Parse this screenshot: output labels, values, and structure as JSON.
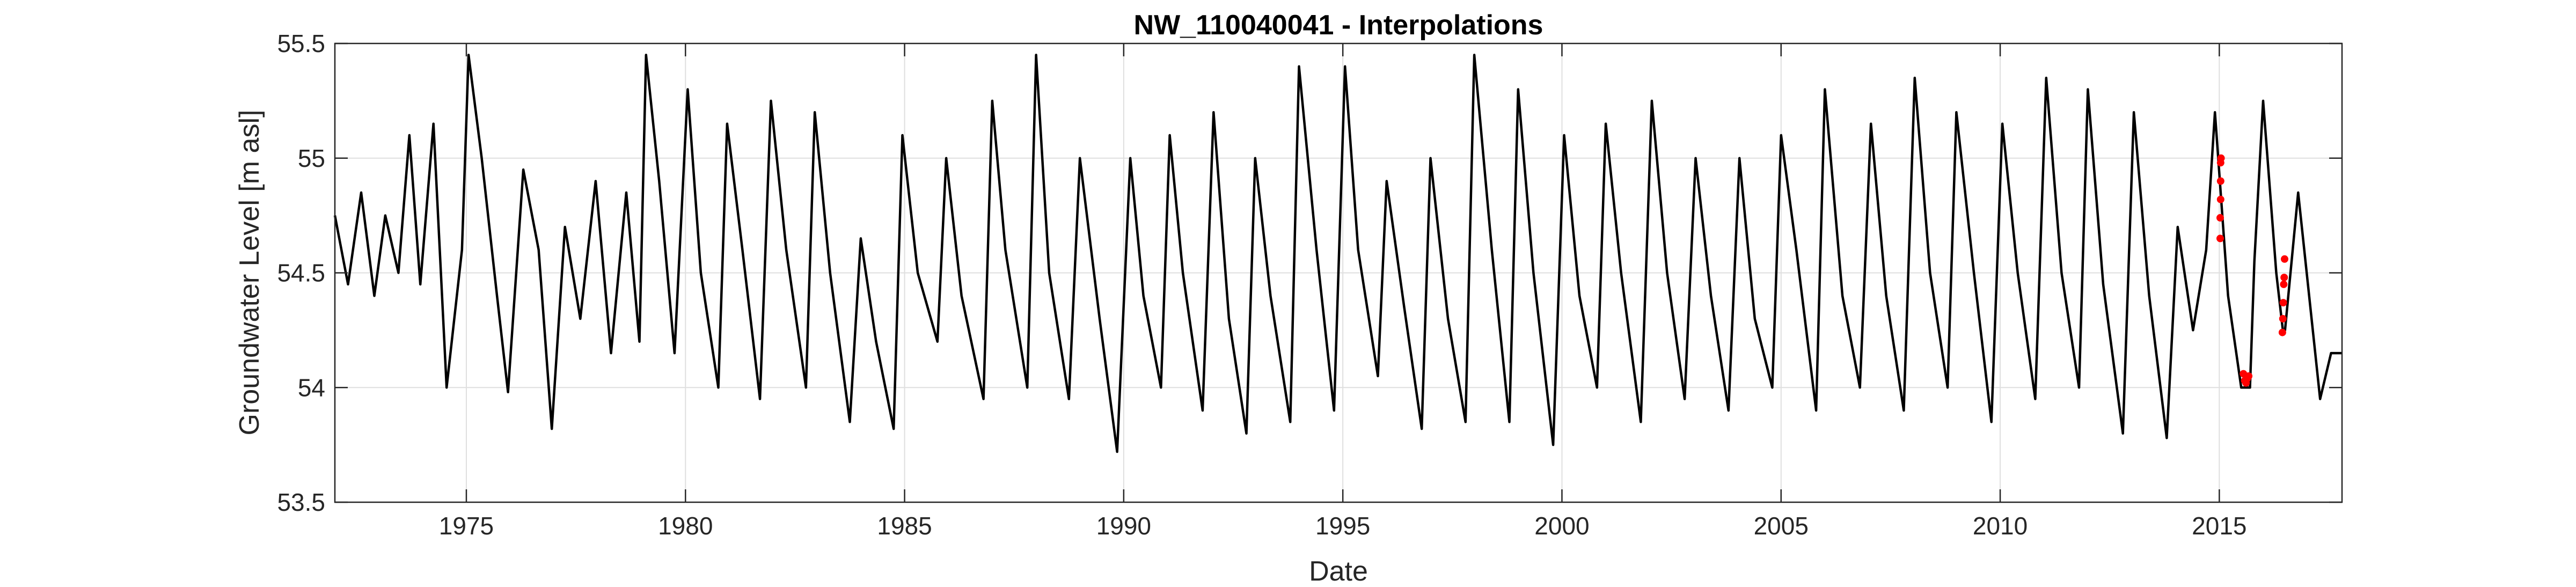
{
  "chart_data": {
    "type": "line",
    "title": "NW_110040041 - Interpolations",
    "xlabel": "Date",
    "ylabel": "Groundwater Level [m asl]",
    "xlim": [
      1972.0,
      2017.8
    ],
    "ylim": [
      53.5,
      55.5
    ],
    "x_ticks": [
      1975,
      1980,
      1985,
      1990,
      1995,
      2000,
      2005,
      2010,
      2015
    ],
    "x_tick_labels": [
      "1975",
      "1980",
      "1985",
      "1990",
      "1995",
      "2000",
      "2005",
      "2010",
      "2015"
    ],
    "y_ticks": [
      53.5,
      54,
      54.5,
      55,
      55.5
    ],
    "y_tick_labels": [
      "53.5",
      "54",
      "54.5",
      "55",
      "55.5"
    ],
    "grid": true,
    "colors": {
      "series": "#000000",
      "interpolated": "#ff0000",
      "grid": "#dfdfdf",
      "frame": "#262626"
    },
    "series": [
      {
        "style": "line",
        "color": "#000000",
        "x": [
          1972.0,
          1972.3,
          1972.6,
          1972.9,
          1973.15,
          1973.45,
          1973.7,
          1973.95,
          1974.25,
          1974.55,
          1974.9,
          1975.05,
          1975.35,
          1975.7,
          1975.95,
          1976.3,
          1976.65,
          1976.95,
          1977.25,
          1977.6,
          1977.95,
          1978.3,
          1978.65,
          1978.95,
          1979.1,
          1979.4,
          1979.75,
          1980.05,
          1980.35,
          1980.75,
          1980.95,
          1981.3,
          1981.7,
          1981.95,
          1982.3,
          1982.75,
          1982.95,
          1983.3,
          1983.75,
          1984.0,
          1984.35,
          1984.75,
          1984.95,
          1985.3,
          1985.75,
          1985.95,
          1986.3,
          1986.8,
          1987.0,
          1987.3,
          1987.8,
          1988.0,
          1988.3,
          1988.75,
          1989.0,
          1989.45,
          1989.85,
          1990.15,
          1990.45,
          1990.85,
          1991.05,
          1991.35,
          1991.8,
          1992.05,
          1992.4,
          1992.8,
          1993.0,
          1993.35,
          1993.8,
          1994.0,
          1994.4,
          1994.8,
          1995.05,
          1995.35,
          1995.8,
          1996.0,
          1996.4,
          1996.8,
          1997.0,
          1997.4,
          1997.8,
          1998.0,
          1998.4,
          1998.8,
          1999.0,
          1999.35,
          1999.8,
          2000.05,
          2000.4,
          2000.8,
          2001.0,
          2001.35,
          2001.8,
          2002.05,
          2002.4,
          2002.8,
          2003.05,
          2003.4,
          2003.8,
          2004.05,
          2004.4,
          2004.8,
          2005.0,
          2005.35,
          2005.8,
          2006.0,
          2006.4,
          2006.8,
          2007.05,
          2007.4,
          2007.8,
          2008.05,
          2008.4,
          2008.8,
          2009.0,
          2009.4,
          2009.8,
          2010.05,
          2010.4,
          2010.8,
          2011.05,
          2011.4,
          2011.8,
          2012.0,
          2012.35,
          2012.8,
          2013.05,
          2013.4,
          2013.8,
          2014.05,
          2014.4,
          2014.7,
          2014.9,
          2015.2,
          2015.5,
          2015.7,
          2015.8,
          2016.0,
          2016.3,
          2016.45,
          2016.5,
          2016.8,
          2017.3,
          2017.55,
          2017.8
        ],
        "y": [
          54.75,
          54.45,
          54.85,
          54.4,
          54.75,
          54.5,
          55.1,
          54.45,
          55.15,
          54.0,
          54.6,
          55.45,
          55.0,
          54.4,
          53.98,
          54.95,
          54.6,
          53.82,
          54.7,
          54.3,
          54.9,
          54.15,
          54.85,
          54.2,
          55.45,
          54.9,
          54.15,
          55.3,
          54.5,
          54.0,
          55.15,
          54.6,
          53.95,
          55.25,
          54.6,
          54.0,
          55.2,
          54.5,
          53.85,
          54.65,
          54.2,
          53.82,
          55.1,
          54.5,
          54.2,
          55.0,
          54.4,
          53.95,
          55.25,
          54.6,
          54.0,
          55.45,
          54.5,
          53.95,
          55.0,
          54.3,
          53.72,
          55.0,
          54.4,
          54.0,
          55.1,
          54.5,
          53.9,
          55.2,
          54.3,
          53.8,
          55.0,
          54.4,
          53.85,
          55.4,
          54.6,
          53.9,
          55.4,
          54.6,
          54.05,
          54.9,
          54.35,
          53.82,
          55.0,
          54.3,
          53.85,
          55.45,
          54.6,
          53.85,
          55.3,
          54.5,
          53.75,
          55.1,
          54.4,
          54.0,
          55.15,
          54.5,
          53.85,
          55.25,
          54.5,
          53.95,
          55.0,
          54.4,
          53.9,
          55.0,
          54.3,
          54.0,
          55.1,
          54.6,
          53.9,
          55.3,
          54.4,
          54.0,
          55.15,
          54.4,
          53.9,
          55.35,
          54.5,
          54.0,
          55.2,
          54.5,
          53.85,
          55.15,
          54.5,
          53.95,
          55.35,
          54.5,
          54.0,
          55.3,
          54.45,
          53.8,
          55.2,
          54.4,
          53.78,
          54.7,
          54.25,
          54.6,
          55.2,
          54.4,
          54.0,
          54.0,
          54.55,
          55.25,
          54.5,
          54.25,
          54.25,
          54.85,
          53.95,
          54.15,
          54.15
        ]
      },
      {
        "style": "markers",
        "color": "#ff0000",
        "x": [
          2015.02,
          2015.02,
          2015.03,
          2015.03,
          2015.03,
          2015.04,
          2015.55,
          2015.58,
          2015.61,
          2015.64,
          2015.67,
          2016.44,
          2016.45,
          2016.46,
          2016.47,
          2016.48,
          2016.49
        ],
        "y": [
          54.65,
          54.74,
          54.82,
          54.9,
          54.98,
          55.0,
          54.06,
          54.03,
          54.02,
          54.04,
          54.05,
          54.24,
          54.3,
          54.37,
          54.45,
          54.48,
          54.56
        ]
      }
    ]
  }
}
